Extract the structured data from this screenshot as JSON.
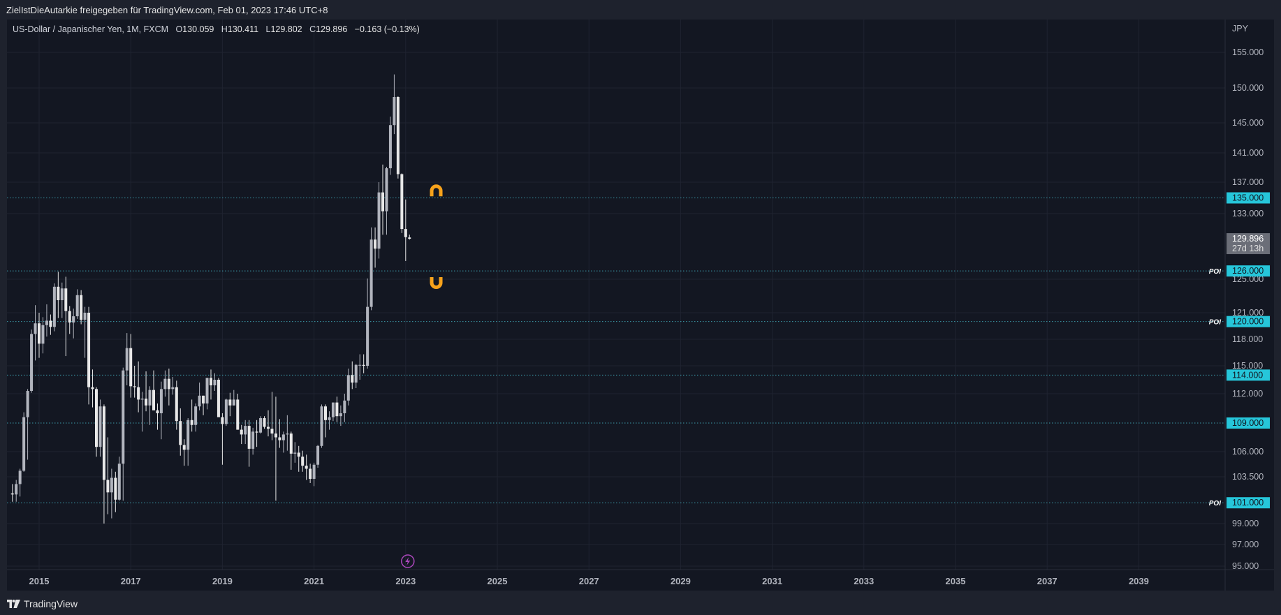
{
  "header": {
    "publisher": "ZielIstDieAutarkie freigegeben für TradingView.com, Feb 01, 2023 17:46 UTC+8"
  },
  "legend": {
    "symbol": "US-Dollar / Japanischer Yen, 1M, FXCM",
    "open_label": "O",
    "open": "130.059",
    "high_label": "H",
    "high": "130.411",
    "low_label": "L",
    "low": "129.802",
    "close_label": "C",
    "close": "129.896",
    "change": "−0.163 (−0.13%)"
  },
  "footer": {
    "brand": "TradingView"
  },
  "colors": {
    "background": "#131722",
    "frame": "#1e222d",
    "candle_up": "#b2b5be",
    "candle_down": "#e8e8e8",
    "hline": "#4dd0e1",
    "hline_label_bg": "#26c6da",
    "magnet": "#f7a21b",
    "event_icon": "#ab47bc",
    "price_label_bg": "#6b6e78"
  },
  "chart_data": {
    "type": "candlestick",
    "timeframe": "1M",
    "currency": "JPY",
    "x_ticks": [
      "2015",
      "2017",
      "2019",
      "2021",
      "2023",
      "2025",
      "2027",
      "2029",
      "2031",
      "2033",
      "2035",
      "2037",
      "2039"
    ],
    "y_ticks": [
      "155.000",
      "150.000",
      "145.000",
      "141.000",
      "137.000",
      "133.000",
      "125.000",
      "121.000",
      "118.000",
      "115.000",
      "112.000",
      "106.000",
      "103.500",
      "99.000",
      "97.000",
      "95.000"
    ],
    "ylim": [
      95,
      155
    ],
    "current_price": {
      "value": "129.896",
      "countdown": "27d 13h"
    },
    "horizontal_levels": [
      {
        "price": "135.000",
        "tag": ""
      },
      {
        "price": "126.000",
        "tag": "POI"
      },
      {
        "price": "120.000",
        "tag": "POI"
      },
      {
        "price": "114.000",
        "tag": ""
      },
      {
        "price": "109.000",
        "tag": ""
      },
      {
        "price": "101.000",
        "tag": "POI"
      }
    ],
    "annotations": [
      {
        "type": "magnet-up",
        "date": "2023-09",
        "price": 136
      },
      {
        "type": "magnet-down",
        "date": "2023-09",
        "price": 124.5
      }
    ],
    "event_marker": {
      "icon": "lightning",
      "date": "2023-01"
    },
    "candles": [
      {
        "date": "2014-06",
        "open": 101.9,
        "high": 102.8,
        "low": 101.1,
        "close": 101.8
      },
      {
        "date": "2014-07",
        "open": 101.8,
        "high": 103.2,
        "low": 101.1,
        "close": 102.8
      },
      {
        "date": "2014-08",
        "open": 102.8,
        "high": 104.3,
        "low": 101.6,
        "close": 104.1
      },
      {
        "date": "2014-09",
        "open": 104.1,
        "high": 110.1,
        "low": 104.0,
        "close": 109.6
      },
      {
        "date": "2014-10",
        "open": 109.6,
        "high": 112.5,
        "low": 105.2,
        "close": 112.3
      },
      {
        "date": "2014-11",
        "open": 112.3,
        "high": 119.1,
        "low": 112.1,
        "close": 118.6
      },
      {
        "date": "2014-12",
        "open": 118.6,
        "high": 121.9,
        "low": 115.6,
        "close": 119.8
      },
      {
        "date": "2015-01",
        "open": 119.8,
        "high": 121.0,
        "low": 115.9,
        "close": 117.5
      },
      {
        "date": "2015-02",
        "open": 117.5,
        "high": 120.5,
        "low": 116.4,
        "close": 119.6
      },
      {
        "date": "2015-03",
        "open": 119.6,
        "high": 122.0,
        "low": 118.3,
        "close": 120.1
      },
      {
        "date": "2015-04",
        "open": 120.1,
        "high": 120.8,
        "low": 118.5,
        "close": 119.4
      },
      {
        "date": "2015-05",
        "open": 119.4,
        "high": 124.5,
        "low": 118.9,
        "close": 124.1
      },
      {
        "date": "2015-06",
        "open": 124.1,
        "high": 125.9,
        "low": 120.4,
        "close": 122.5
      },
      {
        "date": "2015-07",
        "open": 122.5,
        "high": 124.6,
        "low": 120.4,
        "close": 123.9
      },
      {
        "date": "2015-08",
        "open": 123.9,
        "high": 125.3,
        "low": 116.1,
        "close": 121.2
      },
      {
        "date": "2015-09",
        "open": 121.2,
        "high": 121.8,
        "low": 118.6,
        "close": 119.9
      },
      {
        "date": "2015-10",
        "open": 119.9,
        "high": 121.5,
        "low": 118.1,
        "close": 120.6
      },
      {
        "date": "2015-11",
        "open": 120.6,
        "high": 123.8,
        "low": 120.3,
        "close": 123.1
      },
      {
        "date": "2015-12",
        "open": 123.1,
        "high": 123.7,
        "low": 119.7,
        "close": 120.2
      },
      {
        "date": "2016-01",
        "open": 120.2,
        "high": 121.7,
        "low": 115.9,
        "close": 121.0
      },
      {
        "date": "2016-02",
        "open": 121.0,
        "high": 121.7,
        "low": 110.9,
        "close": 112.7
      },
      {
        "date": "2016-03",
        "open": 112.7,
        "high": 114.6,
        "low": 110.6,
        "close": 112.5
      },
      {
        "date": "2016-04",
        "open": 112.5,
        "high": 112.7,
        "low": 105.5,
        "close": 106.5
      },
      {
        "date": "2016-05",
        "open": 106.5,
        "high": 111.4,
        "low": 105.5,
        "close": 110.7
      },
      {
        "date": "2016-06",
        "open": 110.7,
        "high": 110.9,
        "low": 99.0,
        "close": 103.2
      },
      {
        "date": "2016-07",
        "open": 103.2,
        "high": 107.5,
        "low": 99.9,
        "close": 102.0
      },
      {
        "date": "2016-08",
        "open": 102.0,
        "high": 104.3,
        "low": 99.5,
        "close": 103.4
      },
      {
        "date": "2016-09",
        "open": 103.4,
        "high": 104.0,
        "low": 100.1,
        "close": 101.3
      },
      {
        "date": "2016-10",
        "open": 101.3,
        "high": 105.5,
        "low": 101.2,
        "close": 104.8
      },
      {
        "date": "2016-11",
        "open": 104.8,
        "high": 114.8,
        "low": 101.2,
        "close": 114.5
      },
      {
        "date": "2016-12",
        "open": 114.5,
        "high": 118.7,
        "low": 112.9,
        "close": 117.0
      },
      {
        "date": "2017-01",
        "open": 117.0,
        "high": 118.6,
        "low": 111.6,
        "close": 112.8
      },
      {
        "date": "2017-02",
        "open": 112.8,
        "high": 115.0,
        "low": 111.6,
        "close": 112.7
      },
      {
        "date": "2017-03",
        "open": 112.7,
        "high": 115.5,
        "low": 110.1,
        "close": 111.4
      },
      {
        "date": "2017-04",
        "open": 111.4,
        "high": 112.2,
        "low": 108.1,
        "close": 111.5
      },
      {
        "date": "2017-05",
        "open": 111.5,
        "high": 114.4,
        "low": 110.2,
        "close": 110.8
      },
      {
        "date": "2017-06",
        "open": 110.8,
        "high": 112.8,
        "low": 108.8,
        "close": 112.4
      },
      {
        "date": "2017-07",
        "open": 112.4,
        "high": 114.5,
        "low": 110.6,
        "close": 110.3
      },
      {
        "date": "2017-08",
        "open": 110.3,
        "high": 111.0,
        "low": 108.3,
        "close": 110.0
      },
      {
        "date": "2017-09",
        "open": 110.0,
        "high": 113.3,
        "low": 107.3,
        "close": 112.5
      },
      {
        "date": "2017-10",
        "open": 112.5,
        "high": 114.5,
        "low": 111.7,
        "close": 113.6
      },
      {
        "date": "2017-11",
        "open": 113.6,
        "high": 114.7,
        "low": 110.8,
        "close": 112.5
      },
      {
        "date": "2017-12",
        "open": 112.5,
        "high": 113.8,
        "low": 111.9,
        "close": 112.7
      },
      {
        "date": "2018-01",
        "open": 112.7,
        "high": 113.4,
        "low": 108.3,
        "close": 109.2
      },
      {
        "date": "2018-02",
        "open": 109.2,
        "high": 110.5,
        "low": 105.6,
        "close": 106.7
      },
      {
        "date": "2018-03",
        "open": 106.7,
        "high": 107.3,
        "low": 104.6,
        "close": 106.2
      },
      {
        "date": "2018-04",
        "open": 106.2,
        "high": 109.5,
        "low": 104.6,
        "close": 109.3
      },
      {
        "date": "2018-05",
        "open": 109.3,
        "high": 111.4,
        "low": 108.1,
        "close": 108.8
      },
      {
        "date": "2018-06",
        "open": 108.8,
        "high": 111.0,
        "low": 108.1,
        "close": 110.7
      },
      {
        "date": "2018-07",
        "open": 110.7,
        "high": 113.2,
        "low": 110.3,
        "close": 111.8
      },
      {
        "date": "2018-08",
        "open": 111.8,
        "high": 111.8,
        "low": 109.8,
        "close": 111.0
      },
      {
        "date": "2018-09",
        "open": 111.0,
        "high": 113.7,
        "low": 110.4,
        "close": 113.7
      },
      {
        "date": "2018-10",
        "open": 113.7,
        "high": 114.6,
        "low": 111.4,
        "close": 112.9
      },
      {
        "date": "2018-11",
        "open": 112.9,
        "high": 114.2,
        "low": 112.3,
        "close": 113.5
      },
      {
        "date": "2018-12",
        "open": 113.5,
        "high": 113.7,
        "low": 109.8,
        "close": 109.6
      },
      {
        "date": "2019-01",
        "open": 109.6,
        "high": 110.0,
        "low": 104.7,
        "close": 108.9
      },
      {
        "date": "2019-02",
        "open": 108.9,
        "high": 111.5,
        "low": 108.7,
        "close": 111.4
      },
      {
        "date": "2019-03",
        "open": 111.4,
        "high": 112.1,
        "low": 109.7,
        "close": 110.8
      },
      {
        "date": "2019-04",
        "open": 110.8,
        "high": 112.4,
        "low": 110.8,
        "close": 111.4
      },
      {
        "date": "2019-05",
        "open": 111.4,
        "high": 112.0,
        "low": 108.3,
        "close": 108.3
      },
      {
        "date": "2019-06",
        "open": 108.3,
        "high": 108.8,
        "low": 106.8,
        "close": 107.8
      },
      {
        "date": "2019-07",
        "open": 107.8,
        "high": 109.3,
        "low": 106.8,
        "close": 108.7
      },
      {
        "date": "2019-08",
        "open": 108.7,
        "high": 109.3,
        "low": 104.5,
        "close": 106.3
      },
      {
        "date": "2019-09",
        "open": 106.3,
        "high": 108.5,
        "low": 105.7,
        "close": 108.1
      },
      {
        "date": "2019-10",
        "open": 108.1,
        "high": 109.3,
        "low": 106.5,
        "close": 108.0
      },
      {
        "date": "2019-11",
        "open": 108.0,
        "high": 109.7,
        "low": 107.9,
        "close": 109.5
      },
      {
        "date": "2019-12",
        "open": 109.5,
        "high": 109.7,
        "low": 108.4,
        "close": 108.6
      },
      {
        "date": "2020-01",
        "open": 108.6,
        "high": 110.3,
        "low": 107.6,
        "close": 108.4
      },
      {
        "date": "2020-02",
        "open": 108.4,
        "high": 112.2,
        "low": 107.2,
        "close": 107.9
      },
      {
        "date": "2020-03",
        "open": 107.9,
        "high": 111.7,
        "low": 101.2,
        "close": 107.5
      },
      {
        "date": "2020-04",
        "open": 107.5,
        "high": 109.4,
        "low": 106.4,
        "close": 107.2
      },
      {
        "date": "2020-05",
        "open": 107.2,
        "high": 108.1,
        "low": 105.9,
        "close": 107.8
      },
      {
        "date": "2020-06",
        "open": 107.8,
        "high": 109.8,
        "low": 106.1,
        "close": 107.9
      },
      {
        "date": "2020-07",
        "open": 107.9,
        "high": 108.1,
        "low": 104.2,
        "close": 105.8
      },
      {
        "date": "2020-08",
        "open": 105.8,
        "high": 107.0,
        "low": 104.9,
        "close": 105.9
      },
      {
        "date": "2020-09",
        "open": 105.9,
        "high": 106.6,
        "low": 104.0,
        "close": 105.5
      },
      {
        "date": "2020-10",
        "open": 105.5,
        "high": 106.1,
        "low": 104.0,
        "close": 104.6
      },
      {
        "date": "2020-11",
        "open": 104.6,
        "high": 105.7,
        "low": 103.2,
        "close": 104.3
      },
      {
        "date": "2020-12",
        "open": 104.3,
        "high": 104.8,
        "low": 102.9,
        "close": 103.3
      },
      {
        "date": "2021-01",
        "open": 103.3,
        "high": 104.9,
        "low": 102.6,
        "close": 104.7
      },
      {
        "date": "2021-02",
        "open": 104.7,
        "high": 106.7,
        "low": 104.4,
        "close": 106.6
      },
      {
        "date": "2021-03",
        "open": 106.6,
        "high": 110.9,
        "low": 106.4,
        "close": 110.7
      },
      {
        "date": "2021-04",
        "open": 110.7,
        "high": 110.9,
        "low": 107.5,
        "close": 109.3
      },
      {
        "date": "2021-05",
        "open": 109.3,
        "high": 110.2,
        "low": 108.3,
        "close": 109.6
      },
      {
        "date": "2021-06",
        "open": 109.6,
        "high": 111.1,
        "low": 109.2,
        "close": 111.1
      },
      {
        "date": "2021-07",
        "open": 111.1,
        "high": 111.7,
        "low": 109.1,
        "close": 109.7
      },
      {
        "date": "2021-08",
        "open": 109.7,
        "high": 110.8,
        "low": 108.7,
        "close": 110.0
      },
      {
        "date": "2021-09",
        "open": 110.0,
        "high": 112.0,
        "low": 109.1,
        "close": 111.3
      },
      {
        "date": "2021-10",
        "open": 111.3,
        "high": 114.7,
        "low": 110.8,
        "close": 114.0
      },
      {
        "date": "2021-11",
        "open": 114.0,
        "high": 115.5,
        "low": 112.5,
        "close": 113.2
      },
      {
        "date": "2021-12",
        "open": 113.2,
        "high": 115.2,
        "low": 112.6,
        "close": 115.1
      },
      {
        "date": "2022-01",
        "open": 115.1,
        "high": 116.3,
        "low": 113.5,
        "close": 115.1
      },
      {
        "date": "2022-02",
        "open": 115.1,
        "high": 116.3,
        "low": 114.2,
        "close": 115.0
      },
      {
        "date": "2022-03",
        "open": 115.0,
        "high": 125.1,
        "low": 114.7,
        "close": 121.7
      },
      {
        "date": "2022-04",
        "open": 121.7,
        "high": 131.3,
        "low": 121.3,
        "close": 129.8
      },
      {
        "date": "2022-05",
        "open": 129.8,
        "high": 131.3,
        "low": 126.4,
        "close": 128.7
      },
      {
        "date": "2022-06",
        "open": 128.7,
        "high": 137.0,
        "low": 127.5,
        "close": 135.7
      },
      {
        "date": "2022-07",
        "open": 135.7,
        "high": 139.4,
        "low": 130.4,
        "close": 133.3
      },
      {
        "date": "2022-08",
        "open": 133.3,
        "high": 139.1,
        "low": 130.4,
        "close": 138.9
      },
      {
        "date": "2022-09",
        "open": 138.9,
        "high": 145.9,
        "low": 138.0,
        "close": 144.7
      },
      {
        "date": "2022-10",
        "open": 144.7,
        "high": 151.9,
        "low": 143.5,
        "close": 148.7
      },
      {
        "date": "2022-11",
        "open": 148.7,
        "high": 148.8,
        "low": 137.5,
        "close": 138.1
      },
      {
        "date": "2022-12",
        "open": 138.1,
        "high": 138.2,
        "low": 130.6,
        "close": 131.1
      },
      {
        "date": "2023-01",
        "open": 131.1,
        "high": 134.8,
        "low": 127.2,
        "close": 130.1
      },
      {
        "date": "2023-02",
        "open": 130.059,
        "high": 130.411,
        "low": 129.802,
        "close": 129.896
      }
    ]
  }
}
